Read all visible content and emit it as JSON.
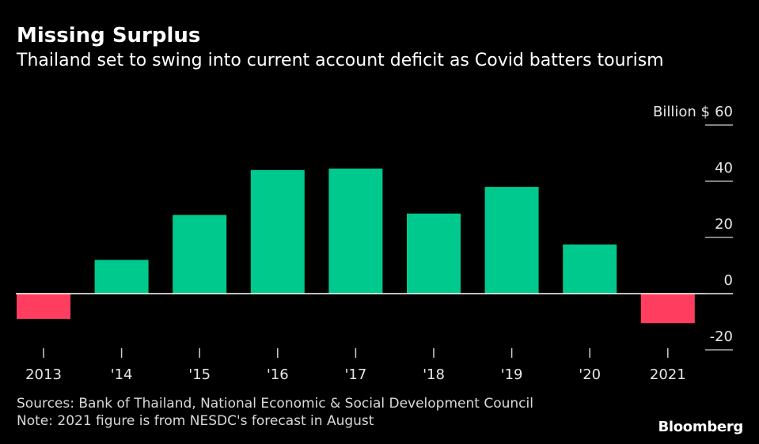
{
  "header": {
    "title": "Missing Surplus",
    "subtitle": "Thailand set to swing into current account deficit as Covid batters tourism"
  },
  "footer": {
    "sources": "Sources: Bank of Thailand, National Economic & Social Development Council",
    "note": "Note: 2021 figure is from NESDC's forecast in August",
    "brand": "Bloomberg"
  },
  "colors": {
    "positive": "#00c98d",
    "negative": "#ff3e5f",
    "axis": "#ffffff",
    "background": "#000000"
  },
  "chart_data": {
    "type": "bar",
    "title": "Missing Surplus",
    "subtitle": "Thailand set to swing into current account deficit as Covid batters tourism",
    "ylabel": "Billion $",
    "categories": [
      "2013",
      "'14",
      "'15",
      "'16",
      "'17",
      "'18",
      "'19",
      "'20",
      "2021"
    ],
    "values": [
      -9,
      12,
      28,
      44,
      44.5,
      28.5,
      38,
      17.5,
      -10.5
    ],
    "ylim": [
      -20,
      60
    ],
    "yticks": [
      -20,
      0,
      20,
      40,
      60
    ],
    "yaxis_position": "right",
    "grid": false,
    "legend": "none"
  }
}
